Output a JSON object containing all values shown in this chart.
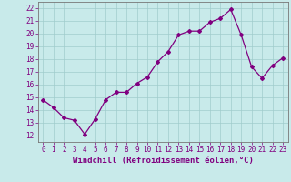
{
  "x": [
    0,
    1,
    2,
    3,
    4,
    5,
    6,
    7,
    8,
    9,
    10,
    11,
    12,
    13,
    14,
    15,
    16,
    17,
    18,
    19,
    20,
    21,
    22,
    23
  ],
  "y": [
    14.8,
    14.2,
    13.4,
    13.2,
    12.1,
    13.3,
    14.8,
    15.4,
    15.4,
    16.1,
    16.6,
    17.8,
    18.6,
    19.9,
    20.2,
    20.2,
    20.9,
    21.2,
    21.9,
    19.9,
    17.4,
    16.5,
    17.5,
    18.1
  ],
  "color": "#800080",
  "bg_color": "#c8eaea",
  "grid_color": "#a0cccc",
  "xlabel": "Windchill (Refroidissement éolien,°C)",
  "xlim": [
    -0.5,
    23.5
  ],
  "ylim": [
    11.5,
    22.5
  ],
  "yticks": [
    12,
    13,
    14,
    15,
    16,
    17,
    18,
    19,
    20,
    21,
    22
  ],
  "xticks": [
    0,
    1,
    2,
    3,
    4,
    5,
    6,
    7,
    8,
    9,
    10,
    11,
    12,
    13,
    14,
    15,
    16,
    17,
    18,
    19,
    20,
    21,
    22,
    23
  ],
  "marker": "D",
  "markersize": 2.0,
  "linewidth": 0.9,
  "xlabel_fontsize": 6.5,
  "tick_fontsize": 5.5
}
